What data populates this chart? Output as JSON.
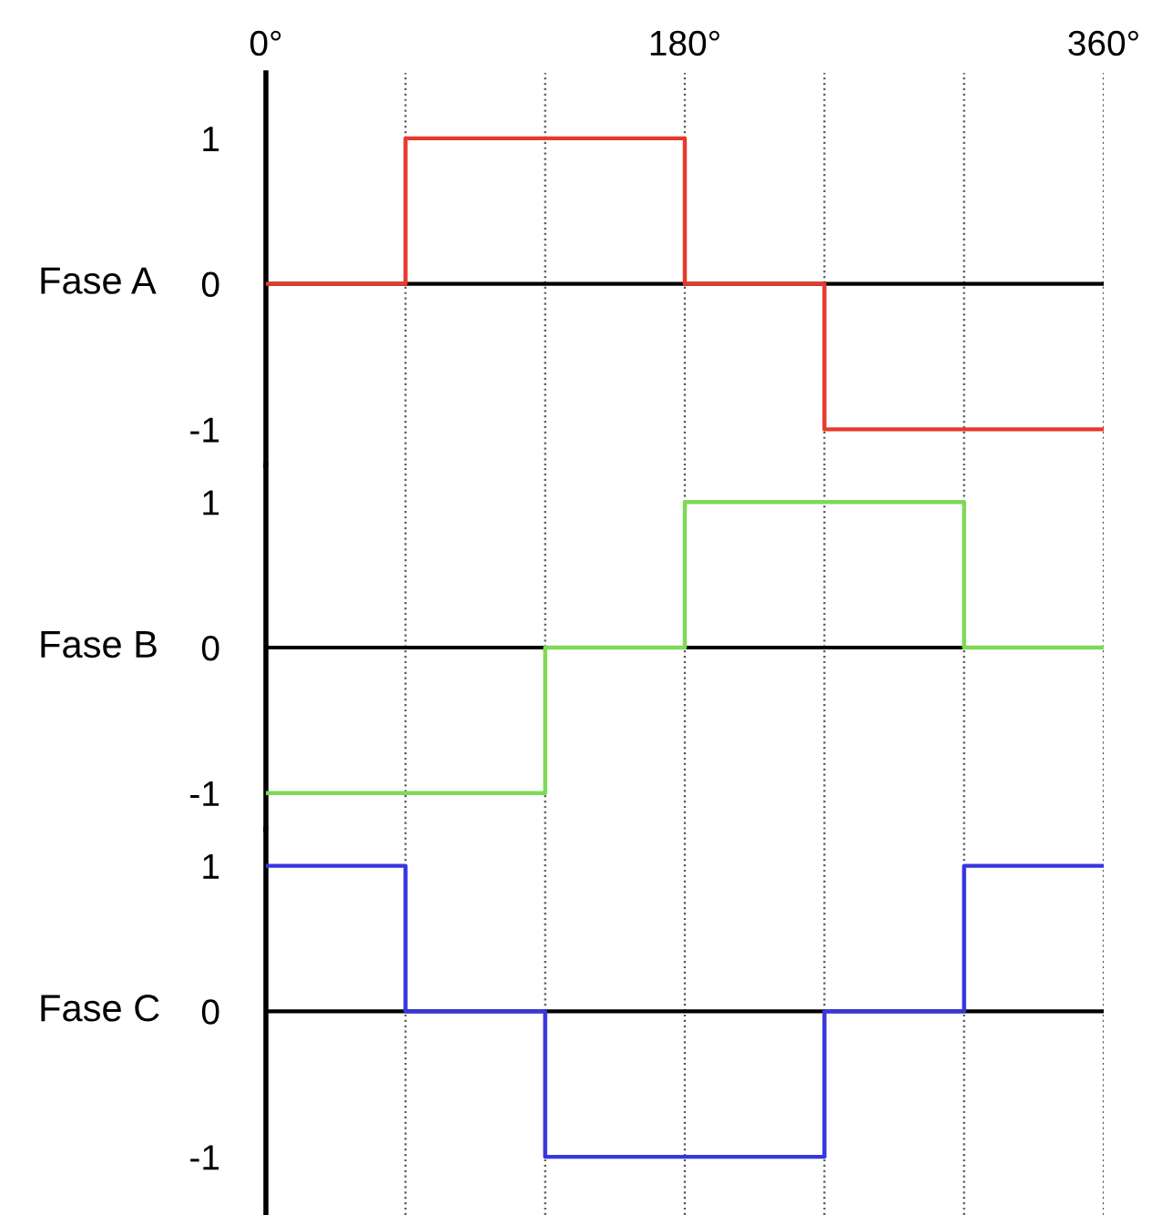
{
  "chart_data": [
    {
      "type": "step",
      "ylabel": "Fase A",
      "x": [
        0,
        60,
        120,
        180,
        240,
        300,
        360
      ],
      "series": [
        {
          "color": "#e8392b",
          "values": [
            0,
            1,
            1,
            0,
            -1,
            -1,
            -1
          ]
        }
      ],
      "xlim": [
        0,
        360
      ],
      "xticks": [
        {
          "value": 0,
          "label": "0°"
        },
        {
          "value": 60,
          "label": null
        },
        {
          "value": 120,
          "label": null
        },
        {
          "value": 180,
          "label": "180°"
        },
        {
          "value": 240,
          "label": null
        },
        {
          "value": 300,
          "label": null
        },
        {
          "value": 360,
          "label": "360°"
        }
      ],
      "ylim": [
        -1.25,
        1.45
      ],
      "yticks": [
        1,
        0,
        -1
      ],
      "grid": "x",
      "ref_lines": [
        {
          "axis": "y",
          "value": 0,
          "color": "#000000"
        }
      ],
      "legend": false
    },
    {
      "type": "step",
      "ylabel": "Fase B",
      "x": [
        0,
        60,
        120,
        180,
        240,
        300,
        360
      ],
      "series": [
        {
          "color": "#7ed957",
          "values": [
            -1,
            -1,
            0,
            1,
            1,
            0,
            0
          ]
        }
      ],
      "xlim": [
        0,
        360
      ],
      "xticks": [
        {
          "value": 0,
          "label": null
        },
        {
          "value": 60,
          "label": null
        },
        {
          "value": 120,
          "label": null
        },
        {
          "value": 180,
          "label": null
        },
        {
          "value": 240,
          "label": null
        },
        {
          "value": 300,
          "label": null
        },
        {
          "value": 360,
          "label": null
        }
      ],
      "ylim": [
        -1.25,
        1.25
      ],
      "yticks": [
        1,
        0,
        -1
      ],
      "grid": "x",
      "tick_labels": "y",
      "ref_lines": [
        {
          "axis": "y",
          "value": 0,
          "color": "#000000"
        }
      ],
      "legend": false
    },
    {
      "type": "step",
      "ylabel": "Fase C",
      "x": [
        0,
        60,
        120,
        180,
        240,
        300,
        360
      ],
      "series": [
        {
          "color": "#3737e0",
          "values": [
            1,
            0,
            -1,
            -1,
            0,
            1,
            1
          ]
        }
      ],
      "xlim": [
        0,
        360
      ],
      "xticks": [
        {
          "value": 0,
          "label": null
        },
        {
          "value": 60,
          "label": null
        },
        {
          "value": 120,
          "label": null
        },
        {
          "value": 180,
          "label": null
        },
        {
          "value": 240,
          "label": null
        },
        {
          "value": 300,
          "label": null
        },
        {
          "value": 360,
          "label": null
        }
      ],
      "ylim": [
        -1.4,
        1.25
      ],
      "yticks": [
        1,
        0,
        -1
      ],
      "grid": "x",
      "tick_labels": "y",
      "ref_lines": [
        {
          "axis": "y",
          "value": 0,
          "color": "#000000"
        }
      ],
      "legend": false
    }
  ]
}
